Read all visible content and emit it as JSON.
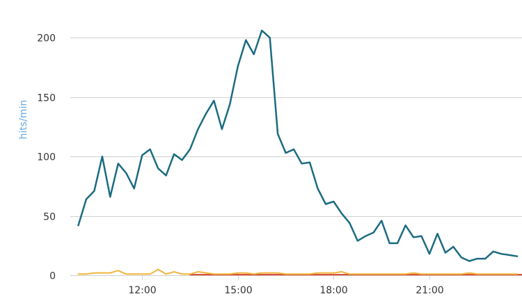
{
  "chart_data": {
    "type": "line",
    "title": "",
    "xlabel": "",
    "ylabel": "hits/min",
    "ylim": [
      0,
      220
    ],
    "y_ticks": [
      0,
      50,
      100,
      150,
      200
    ],
    "x_tick_labels": [
      "12:00",
      "15:00",
      "18:00",
      "21:00"
    ],
    "x_tick_hours": [
      12,
      15,
      18,
      21
    ],
    "xlim_hours": [
      9.75,
      23.9
    ],
    "grid": "horizontal",
    "legend": "none",
    "series": [
      {
        "color": "#1b6b80",
        "x": [
          10,
          10.25,
          10.5,
          10.75,
          11,
          11.25,
          11.5,
          11.75,
          12,
          12.25,
          12.5,
          12.75,
          13,
          13.25,
          13.5,
          13.75,
          14,
          14.25,
          14.5,
          14.75,
          15,
          15.25,
          15.5,
          15.75,
          16,
          16.25,
          16.5,
          16.75,
          17,
          17.25,
          17.5,
          17.75,
          18,
          18.25,
          18.5,
          18.75,
          19,
          19.25,
          19.5,
          19.75,
          20,
          20.25,
          20.5,
          20.75,
          21,
          21.25,
          21.5,
          21.75,
          22,
          22.25,
          22.5,
          22.75,
          23,
          23.25,
          23.5,
          23.75
        ],
        "values": [
          42,
          64,
          71,
          100,
          66,
          94,
          86,
          73,
          101,
          106,
          90,
          84,
          102,
          97,
          106,
          123,
          136,
          147,
          123,
          144,
          176,
          198,
          186,
          206,
          200,
          119,
          103,
          106,
          94,
          95,
          73,
          60,
          62,
          52,
          44,
          29,
          33,
          36,
          46,
          27,
          27,
          42,
          32,
          33,
          18,
          35,
          19,
          24,
          15,
          12,
          14,
          14,
          20,
          18,
          17,
          16
        ]
      },
      {
        "color": "#f0b43c",
        "x": [
          10,
          10.25,
          10.5,
          10.75,
          11,
          11.25,
          11.5,
          11.75,
          12,
          12.25,
          12.5,
          12.75,
          13,
          13.25,
          13.5,
          13.75,
          14,
          14.25,
          14.5,
          14.75,
          15,
          15.25,
          15.5,
          15.75,
          16,
          16.25,
          16.5,
          16.75,
          17,
          17.25,
          17.5,
          17.75,
          18,
          18.25,
          18.5,
          18.75,
          19,
          19.25,
          19.5,
          19.75,
          20,
          20.25,
          20.5,
          20.75,
          21,
          21.25,
          21.5,
          21.75,
          22,
          22.25,
          22.5,
          22.75,
          23,
          23.25,
          23.5,
          23.75
        ],
        "values": [
          1,
          1,
          2,
          2,
          2,
          4,
          1,
          1,
          1,
          1,
          5,
          1,
          3,
          1,
          1,
          3,
          2,
          1,
          1,
          1,
          2,
          2,
          1,
          2,
          2,
          2,
          1,
          1,
          1,
          1,
          2,
          2,
          2,
          3,
          1,
          1,
          1,
          1,
          1,
          1,
          1,
          1,
          2,
          1,
          1,
          1,
          1,
          1,
          1,
          2,
          1,
          1,
          1,
          1,
          1,
          1
        ]
      },
      {
        "color": "#d6452e",
        "x": [
          13.5,
          14,
          14.5,
          15,
          15.5,
          16,
          16.5,
          17,
          17.5,
          18,
          18.5,
          19,
          19.5,
          20,
          20.5,
          21,
          21.5,
          22,
          22.5,
          23,
          23.5,
          23.9
        ],
        "values": [
          0.5,
          0.5,
          0.5,
          0.5,
          0.5,
          0.5,
          0.5,
          0.5,
          0.5,
          0.5,
          0.5,
          0.5,
          0.5,
          0.5,
          0.5,
          0.5,
          0.5,
          0.5,
          0.5,
          0.5,
          0.5,
          0.5
        ]
      }
    ]
  }
}
